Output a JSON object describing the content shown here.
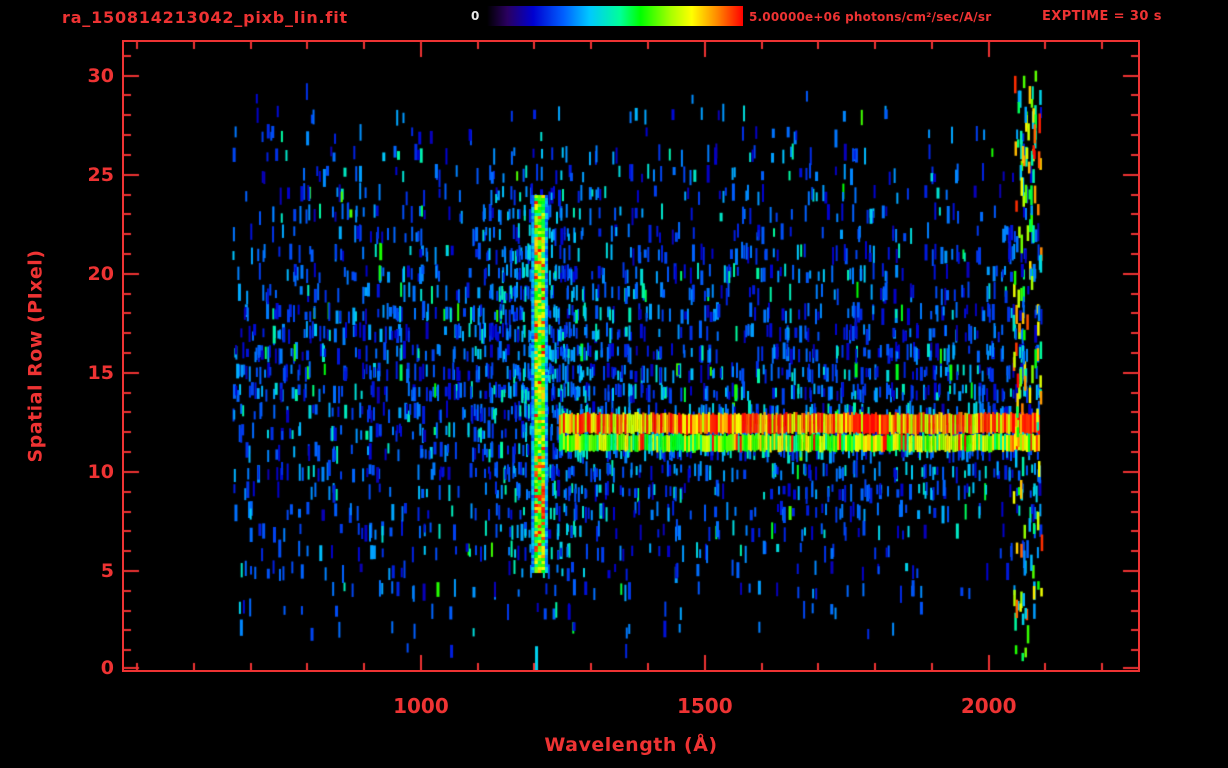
{
  "header": {
    "title": "ra_150814213042_pixb_lin.fit",
    "colorbar_min": "0",
    "colorbar_max": "5.00000e+06 photons/cm²/sec/A/sr",
    "exptime": "EXPTIME = 30 s"
  },
  "colors": {
    "accent": "#ee3333",
    "background": "#000000",
    "colorbar_min_text": "#e8e8e8"
  },
  "chart_data": {
    "type": "heatmap",
    "title": "ra_150814213042_pixb_lin.fit",
    "xlabel": "Wavelength (Å)",
    "ylabel": "Spatial Row (PIxel)",
    "xlim": [
      477,
      2263
    ],
    "ylim": [
      0,
      31.7
    ],
    "x_ticks": [
      {
        "value": 1000,
        "label": "1000"
      },
      {
        "value": 1500,
        "label": "1500"
      },
      {
        "value": 2000,
        "label": "2000"
      }
    ],
    "y_ticks": [
      {
        "value": 0,
        "label": "0"
      },
      {
        "value": 5,
        "label": "5"
      },
      {
        "value": 10,
        "label": "10"
      },
      {
        "value": 15,
        "label": "15"
      },
      {
        "value": 20,
        "label": "20"
      },
      {
        "value": 25,
        "label": "25"
      },
      {
        "value": 30,
        "label": "30"
      }
    ],
    "colorbar": {
      "min_label": "0",
      "max_label": "5.00000e+06 photons/cm²/sec/A/sr",
      "units": "photons/cm²/sec/A/sr",
      "scale": "lin"
    },
    "exposure_time_s": 30,
    "colormap": [
      {
        "v": 0.0,
        "c": "#000000"
      },
      {
        "v": 0.08,
        "c": "#2a0060"
      },
      {
        "v": 0.18,
        "c": "#0000d0"
      },
      {
        "v": 0.3,
        "c": "#0060ff"
      },
      {
        "v": 0.4,
        "c": "#00c8ff"
      },
      {
        "v": 0.52,
        "c": "#00ff99"
      },
      {
        "v": 0.6,
        "c": "#00ff00"
      },
      {
        "v": 0.72,
        "c": "#aaff00"
      },
      {
        "v": 0.8,
        "c": "#ffff00"
      },
      {
        "v": 0.9,
        "c": "#ff8800"
      },
      {
        "v": 1.0,
        "c": "#ff0000"
      }
    ],
    "features": [
      {
        "name": "bright vertical emission line",
        "wavelength_A": [
          1196,
          1222
        ],
        "rows": [
          5,
          24
        ]
      },
      {
        "name": "bright horizontal spectral trace",
        "wavelength_A": [
          1243,
          2088
        ],
        "rows": [
          11,
          13
        ]
      },
      {
        "name": "bright right-edge column",
        "wavelength_A": [
          2042,
          2092
        ],
        "rows": [
          0.5,
          30
        ]
      },
      {
        "name": "sparse blue/cyan background noise dashes",
        "wavelength_A": [
          668,
          2092
        ],
        "rows": [
          1,
          30
        ]
      }
    ],
    "render": {
      "seed": 1337,
      "x_minor_step": 100,
      "y_minor_step": 1,
      "major_tick_len": 15,
      "minor_tick_len": 7,
      "noise": {
        "lambda": [
          668,
          2092
        ],
        "rows": [
          1,
          30
        ],
        "count": 2400,
        "v": [
          0.15,
          0.42
        ]
      },
      "line_cloud": {
        "lambda_center": 1208,
        "lambda_sigma": 110,
        "rows": [
          3,
          27
        ],
        "count": 520,
        "v": [
          0.18,
          0.5
        ]
      },
      "trace_cloud": {
        "lambda": [
          1250,
          2090
        ],
        "row_center": 12,
        "row_spread": 4.5,
        "count": 420,
        "v": [
          0.18,
          0.48
        ]
      },
      "emission_line": {
        "lambda": [
          1196,
          1222
        ],
        "rows": [
          5,
          24
        ],
        "v": [
          0.5,
          0.88
        ],
        "red_rows": [
          [
            6,
            11,
            0.4
          ],
          [
            18.5,
            21.5,
            0.18
          ]
        ],
        "halo_v": [
          0.28,
          0.45
        ]
      },
      "trace": {
        "lambda": [
          1243,
          2088
        ],
        "boost_after": 2035,
        "bands": [
          {
            "rows": [
              11.95,
              12.95
            ],
            "v": [
              0.7,
              1.0
            ],
            "red_prob": 0.2
          },
          {
            "rows": [
              11.05,
              11.88
            ],
            "v": [
              0.5,
              0.85
            ],
            "red_prob": 0.04
          }
        ]
      },
      "edge_column": {
        "lambda": [
          2042,
          2092
        ],
        "rows": [
          0.5,
          30
        ],
        "count": 150,
        "v": [
          0.3,
          1.0
        ]
      },
      "bottom_dash": {
        "lambda": 1201,
        "rows": [
          0,
          1.2
        ],
        "v": 0.42
      }
    }
  }
}
